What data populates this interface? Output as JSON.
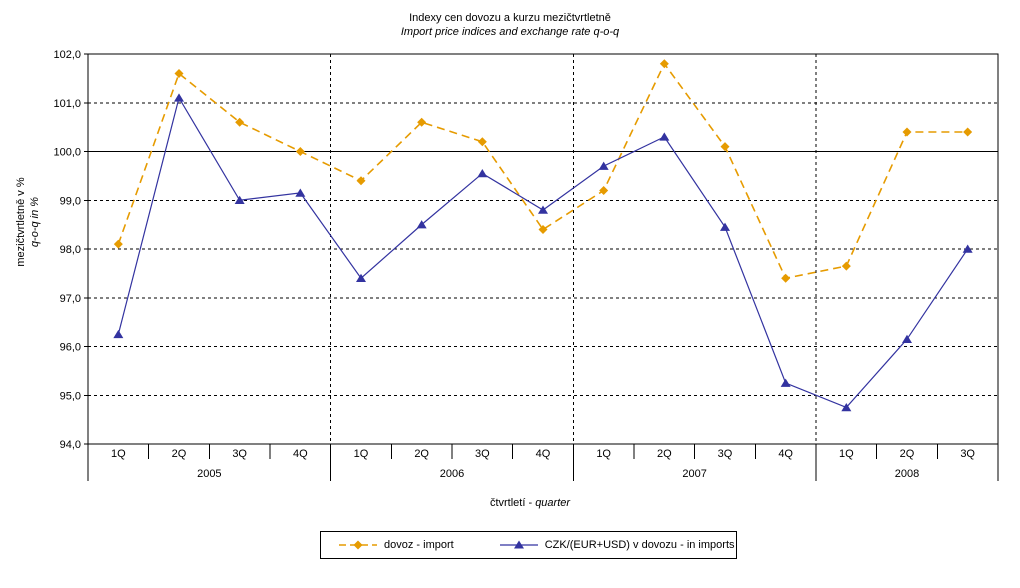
{
  "header": {
    "title": "Indexy cen dovozu a kurzu mezičtvrtletně",
    "subtitle": "Import price indices and exchange rate q-o-q"
  },
  "axes": {
    "y_title_line1": "mezičtvrtletně v %",
    "y_title_line2": "q-o-q in %",
    "x_title_prefix": "čtvrtletí -",
    "x_title_italic": "quarter"
  },
  "legend": {
    "items": [
      {
        "label": "dovoz - import"
      },
      {
        "label": "CZK/(EUR+USD) v dovozu - in imports"
      }
    ]
  },
  "chart_data": {
    "type": "line",
    "title": "Indexy cen dovozu a kurzu mezičtvrtletně",
    "subtitle": "Import price indices and exchange rate q-o-q",
    "xlabel": "čtvrtletí - quarter",
    "ylabel": "mezičtvrtletně v % / q-o-q in %",
    "ylim": [
      94.0,
      102.0
    ],
    "y_tick_step": 1.0,
    "y_tick_labels": [
      "94,0",
      "95,0",
      "96,0",
      "97,0",
      "98,0",
      "99,0",
      "100,0",
      "101,0",
      "102,0"
    ],
    "grid": {
      "horizontal": "dashed",
      "emphasis_line_at": 100.0,
      "vertical_year_separators": "dashed"
    },
    "legend_position": "bottom",
    "x_groups": [
      {
        "year": "2005",
        "quarters": [
          "1Q",
          "2Q",
          "3Q",
          "4Q"
        ]
      },
      {
        "year": "2006",
        "quarters": [
          "1Q",
          "2Q",
          "3Q",
          "4Q"
        ]
      },
      {
        "year": "2007",
        "quarters": [
          "1Q",
          "2Q",
          "3Q",
          "4Q"
        ]
      },
      {
        "year": "2008",
        "quarters": [
          "1Q",
          "2Q",
          "3Q"
        ]
      }
    ],
    "series": [
      {
        "name": "dovoz - import",
        "color": "#e69b00",
        "line_style": "dashed",
        "marker": "diamond",
        "values": [
          98.1,
          101.6,
          100.6,
          100.0,
          99.4,
          100.6,
          100.2,
          98.4,
          99.2,
          101.8,
          100.1,
          97.4,
          97.65,
          100.4,
          100.4
        ]
      },
      {
        "name": "CZK/(EUR+USD) v dovozu - in imports",
        "color": "#3333a0",
        "line_style": "solid",
        "marker": "triangle",
        "values": [
          96.25,
          101.1,
          99.0,
          99.15,
          97.4,
          98.5,
          99.55,
          98.8,
          99.7,
          100.3,
          98.45,
          95.25,
          94.75,
          96.15,
          98.0
        ]
      }
    ]
  }
}
